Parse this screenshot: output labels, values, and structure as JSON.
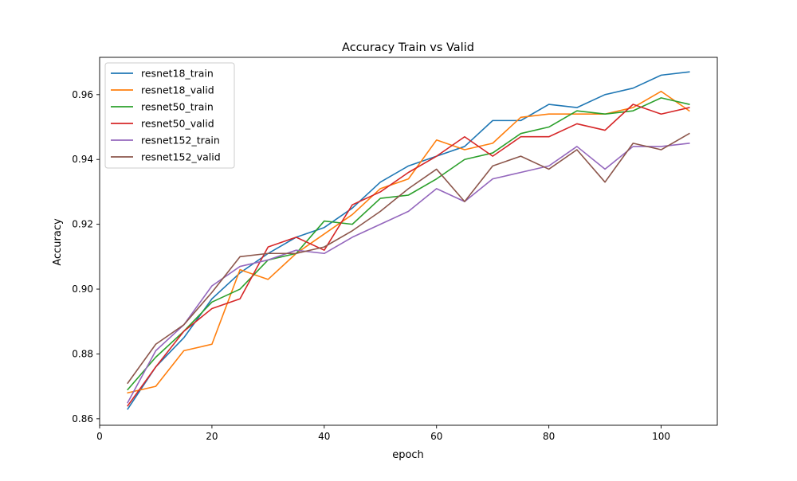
{
  "chart_data": {
    "type": "line",
    "title": "Accuracy Train vs Valid",
    "xlabel": "epoch",
    "ylabel": "Accuracy",
    "xlim": [
      0,
      110
    ],
    "ylim": [
      0.858,
      0.9715
    ],
    "xticks": [
      0,
      20,
      40,
      60,
      80,
      100
    ],
    "yticks": [
      0.86,
      0.88,
      0.9,
      0.92,
      0.94,
      0.96
    ],
    "xtick_labels": [
      "0",
      "20",
      "40",
      "60",
      "80",
      "100"
    ],
    "ytick_labels": [
      "0.86",
      "0.88",
      "0.90",
      "0.92",
      "0.94",
      "0.96"
    ],
    "grid": false,
    "legend_position": "top-left",
    "x": [
      5,
      10,
      15,
      20,
      25,
      30,
      35,
      40,
      45,
      50,
      55,
      60,
      65,
      70,
      75,
      80,
      85,
      90,
      95,
      100,
      105
    ],
    "series": [
      {
        "name": "resnet18_train",
        "color": "#1f77b4",
        "values": [
          0.863,
          0.876,
          0.885,
          0.897,
          0.905,
          0.911,
          0.916,
          0.919,
          0.925,
          0.933,
          0.938,
          0.941,
          0.944,
          0.952,
          0.952,
          0.957,
          0.956,
          0.96,
          0.962,
          0.966,
          0.967
        ]
      },
      {
        "name": "resnet18_valid",
        "color": "#ff7f0e",
        "values": [
          0.868,
          0.87,
          0.881,
          0.883,
          0.906,
          0.903,
          0.911,
          0.917,
          0.923,
          0.931,
          0.934,
          0.946,
          0.943,
          0.945,
          0.953,
          0.954,
          0.954,
          0.954,
          0.956,
          0.961,
          0.955
        ]
      },
      {
        "name": "resnet50_train",
        "color": "#2ca02c",
        "values": [
          0.869,
          0.879,
          0.887,
          0.896,
          0.9,
          0.909,
          0.911,
          0.921,
          0.92,
          0.928,
          0.929,
          0.934,
          0.94,
          0.942,
          0.948,
          0.95,
          0.955,
          0.954,
          0.955,
          0.959,
          0.957
        ]
      },
      {
        "name": "resnet50_valid",
        "color": "#d62728",
        "values": [
          0.864,
          0.876,
          0.887,
          0.894,
          0.897,
          0.913,
          0.916,
          0.912,
          0.926,
          0.93,
          0.936,
          0.941,
          0.947,
          0.941,
          0.947,
          0.947,
          0.951,
          0.949,
          0.957,
          0.954,
          0.956
        ]
      },
      {
        "name": "resnet152_train",
        "color": "#9467bd",
        "values": [
          0.865,
          0.881,
          0.889,
          0.901,
          0.907,
          0.909,
          0.912,
          0.911,
          0.916,
          0.92,
          0.924,
          0.931,
          0.927,
          0.934,
          0.936,
          0.938,
          0.944,
          0.937,
          0.944,
          0.944,
          0.945
        ]
      },
      {
        "name": "resnet152_valid",
        "color": "#8c564b",
        "values": [
          0.871,
          0.883,
          0.889,
          0.899,
          0.91,
          0.911,
          0.911,
          0.913,
          0.918,
          0.924,
          0.931,
          0.937,
          0.927,
          0.938,
          0.941,
          0.937,
          0.943,
          0.933,
          0.945,
          0.943,
          0.948
        ]
      }
    ]
  }
}
